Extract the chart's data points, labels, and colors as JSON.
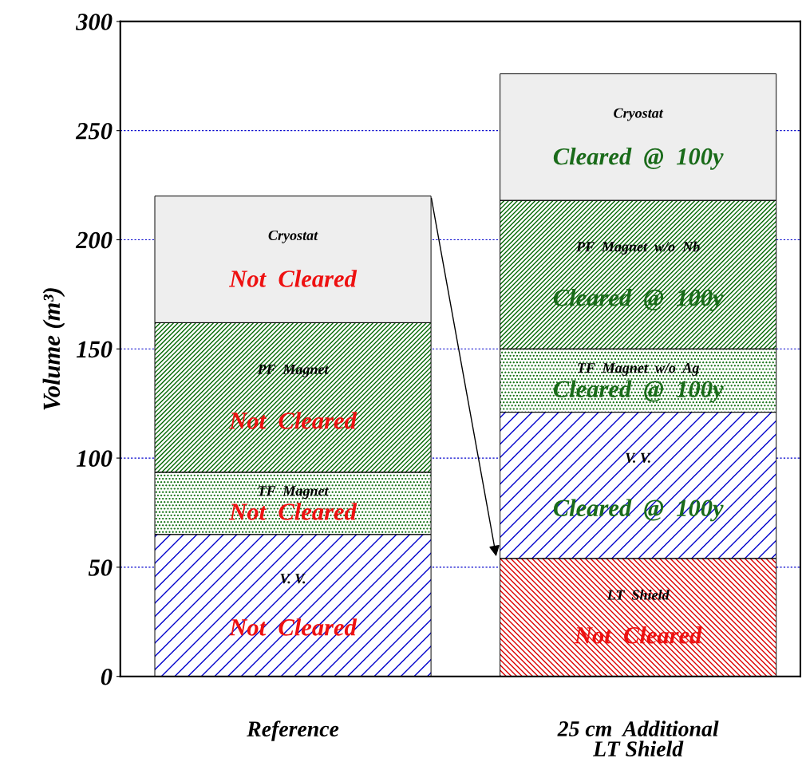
{
  "chart_data": {
    "type": "bar",
    "stacked": true,
    "ylabel": "Volume (m³)",
    "categories": [
      "Reference",
      "25 cm  Additional\nLT Shield"
    ],
    "series": [
      {
        "color": "#dd0000",
        "values": [
          null,
          54
        ]
      },
      {
        "color": "#0000cc",
        "values": [
          65,
          67
        ]
      },
      {
        "color": "#006600",
        "values": [
          28.5,
          29
        ]
      },
      {
        "color": "#006600",
        "values": [
          68.5,
          68
        ]
      },
      {
        "color": "#eeeeee",
        "values": [
          58,
          58
        ]
      }
    ],
    "ylim": [
      0,
      300
    ],
    "yticks": [
      0,
      50,
      100,
      150,
      200,
      250,
      300
    ],
    "grid": "y",
    "annotations": [
      "Cryostat",
      "Not  Cleared",
      "PF  Magnet",
      "Not  Cleared",
      "TF  Magnet",
      "Not  Cleared",
      "V. V.",
      "Not  Cleared",
      "Cryostat",
      "Cleared  @  100y",
      "PF  Magnet  w/o  Nb",
      "Cleared  @  100y",
      "TF  Magnet  w/o  Ag",
      "Cleared  @  100y",
      "V. V.",
      "Cleared  @  100y",
      "LT  Shield",
      "Not  Cleared"
    ]
  }
}
